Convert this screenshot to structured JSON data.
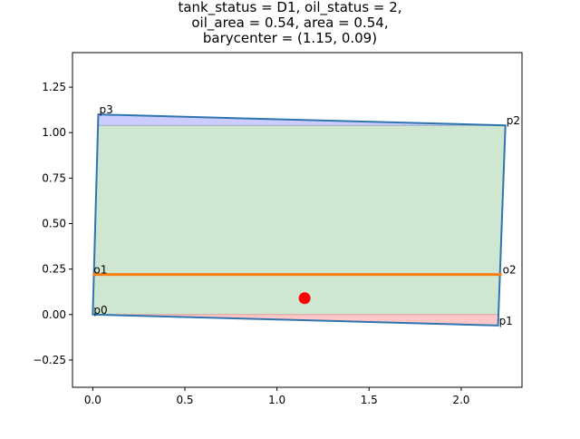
{
  "chart_data": {
    "type": "area",
    "title_lines": [
      "tank_status = D1, oil_status = 2,",
      "oil_area = 0.54, area = 0.54,",
      "barycenter = (1.15, 0.09)"
    ],
    "xlim": [
      -0.11,
      2.33
    ],
    "ylim": [
      -0.4,
      1.44
    ],
    "xticks": [
      0.0,
      0.5,
      1.0,
      1.5,
      2.0
    ],
    "xtick_labels": [
      "0.0",
      "0.5",
      "1.0",
      "1.5",
      "2.0"
    ],
    "yticks": [
      -0.25,
      0.0,
      0.25,
      0.5,
      0.75,
      1.0,
      1.25
    ],
    "ytick_labels": [
      "−0.25",
      "0.00",
      "0.25",
      "0.50",
      "0.75",
      "1.00",
      "1.25"
    ],
    "tank_polygon": [
      {
        "label": "p0",
        "x": 0.0,
        "y": 0.0
      },
      {
        "label": "p1",
        "x": 2.2,
        "y": -0.06
      },
      {
        "label": "p2",
        "x": 2.24,
        "y": 1.04
      },
      {
        "label": "p3",
        "x": 0.03,
        "y": 1.1
      }
    ],
    "oil_line": [
      {
        "label": "o1",
        "x": 0.0,
        "y": 0.22
      },
      {
        "label": "o2",
        "x": 2.22,
        "y": 0.22
      }
    ],
    "oil_level_y": 1.04,
    "bottom_level_y": 0.0,
    "barycenter": {
      "x": 1.15,
      "y": 0.09
    },
    "colors": {
      "tank_outline": "#2e75b0",
      "oil_fill": "#cfe7d0",
      "top_gap_fill": "#ccccff",
      "bottom_gap_fill": "#ffc6c6",
      "oil_line": "#ff7f0e",
      "barycenter": "#ff0000"
    }
  }
}
